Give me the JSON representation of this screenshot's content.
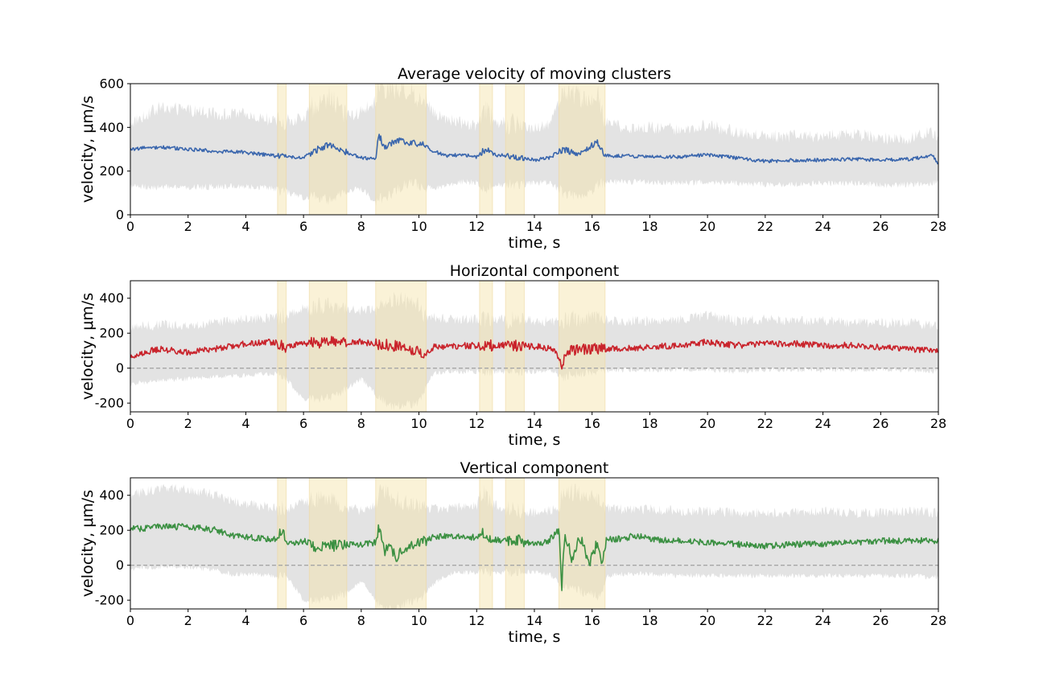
{
  "chart_data": [
    {
      "type": "line",
      "title": "Average velocity of moving clusters",
      "xlabel": "time, s",
      "ylabel": "velocity, μm/s",
      "xlim": [
        0,
        28
      ],
      "ylim": [
        0,
        600
      ],
      "xticks": [
        0,
        2,
        4,
        6,
        8,
        10,
        12,
        14,
        16,
        18,
        20,
        22,
        24,
        26,
        28
      ],
      "yticks": [
        0,
        200,
        400,
        600
      ],
      "ytick_labels": [
        "0",
        "200",
        "400",
        "600"
      ],
      "zero_line": false,
      "highlight_intervals": [
        [
          5.1,
          5.4
        ],
        [
          6.2,
          7.5
        ],
        [
          8.5,
          10.25
        ],
        [
          12.1,
          12.55
        ],
        [
          13.0,
          13.65
        ],
        [
          14.85,
          16.45
        ]
      ],
      "series": [
        {
          "color": "#3a66ad",
          "x": [
            0,
            1,
            2,
            3,
            4,
            5,
            6,
            6.5,
            6.9,
            7.5,
            8.0,
            8.5,
            8.6,
            8.8,
            9.2,
            9.7,
            10.2,
            10.5,
            11,
            11.5,
            12,
            12.3,
            12.6,
            13,
            13.7,
            14,
            14.5,
            15,
            15.5,
            16,
            16.2,
            16.45,
            17,
            18,
            19,
            20,
            21,
            22,
            23,
            24,
            25,
            26,
            27,
            27.8,
            28
          ],
          "y": [
            300,
            310,
            300,
            290,
            285,
            270,
            260,
            300,
            320,
            285,
            260,
            255,
            370,
            310,
            340,
            330,
            320,
            290,
            270,
            275,
            265,
            300,
            275,
            270,
            255,
            250,
            260,
            300,
            280,
            320,
            330,
            270,
            270,
            265,
            265,
            275,
            260,
            245,
            250,
            250,
            255,
            250,
            255,
            270,
            235
          ],
          "band_lower": [
            130,
            125,
            125,
            130,
            130,
            120,
            80,
            80,
            70,
            110,
            120,
            60,
            70,
            80,
            110,
            150,
            130,
            120,
            140,
            150,
            150,
            120,
            130,
            140,
            140,
            145,
            150,
            100,
            90,
            95,
            140,
            150,
            150,
            150,
            145,
            150,
            145,
            140,
            140,
            145,
            145,
            135,
            140,
            145,
            145
          ],
          "band_upper": [
            420,
            490,
            480,
            460,
            460,
            430,
            440,
            520,
            540,
            450,
            470,
            520,
            600,
            560,
            580,
            560,
            520,
            470,
            440,
            420,
            410,
            490,
            430,
            420,
            400,
            400,
            420,
            560,
            540,
            520,
            560,
            420,
            400,
            400,
            390,
            410,
            380,
            360,
            360,
            360,
            370,
            350,
            350,
            380,
            340
          ]
        }
      ]
    },
    {
      "type": "line",
      "title": "Horizontal component",
      "xlabel": "time, s",
      "ylabel": "velocity, μm/s",
      "xlim": [
        0,
        28
      ],
      "ylim": [
        -250,
        500
      ],
      "xticks": [
        0,
        2,
        4,
        6,
        8,
        10,
        12,
        14,
        16,
        18,
        20,
        22,
        24,
        26,
        28
      ],
      "yticks": [
        -200,
        0,
        200,
        400
      ],
      "ytick_labels": [
        "-200",
        "0",
        "200",
        "400"
      ],
      "zero_line": true,
      "highlight_intervals": [
        [
          5.1,
          5.4
        ],
        [
          6.2,
          7.5
        ],
        [
          8.5,
          10.25
        ],
        [
          12.1,
          12.55
        ],
        [
          13.0,
          13.65
        ],
        [
          14.85,
          16.45
        ]
      ],
      "series": [
        {
          "color": "#c9232b",
          "x": [
            0,
            0.5,
            1,
            2,
            3,
            4,
            5,
            5.3,
            6,
            7,
            8,
            8.5,
            9,
            9.5,
            10,
            10.2,
            10.5,
            11,
            12,
            13,
            14,
            14.7,
            14.95,
            15.2,
            16,
            17,
            18,
            19,
            20,
            21,
            22,
            23,
            24,
            25,
            26,
            27,
            28
          ],
          "y": [
            60,
            90,
            110,
            90,
            110,
            140,
            150,
            120,
            140,
            150,
            150,
            140,
            130,
            120,
            100,
            80,
            120,
            125,
            130,
            130,
            125,
            110,
            20,
            100,
            110,
            110,
            120,
            130,
            150,
            130,
            140,
            140,
            130,
            130,
            120,
            110,
            100
          ],
          "band_lower": [
            -90,
            -80,
            -70,
            -60,
            -50,
            -40,
            -30,
            -40,
            -180,
            -170,
            -60,
            -150,
            -220,
            -210,
            -200,
            -120,
            -30,
            -20,
            -20,
            -20,
            -20,
            -20,
            -60,
            -40,
            -20,
            -10,
            -10,
            -10,
            -10,
            -20,
            -10,
            -10,
            -10,
            -10,
            -10,
            -10,
            -20
          ],
          "band_upper": [
            230,
            240,
            250,
            240,
            260,
            280,
            290,
            300,
            340,
            360,
            330,
            340,
            400,
            380,
            350,
            300,
            290,
            280,
            280,
            280,
            270,
            270,
            270,
            280,
            280,
            270,
            270,
            280,
            300,
            270,
            280,
            270,
            270,
            260,
            260,
            260,
            240
          ]
        }
      ]
    },
    {
      "type": "line",
      "title": "Vertical component",
      "xlabel": "time, s",
      "ylabel": "velocity, μm/s",
      "xlim": [
        0,
        28
      ],
      "ylim": [
        -250,
        500
      ],
      "xticks": [
        0,
        2,
        4,
        6,
        8,
        10,
        12,
        14,
        16,
        18,
        20,
        22,
        24,
        26,
        28
      ],
      "yticks": [
        -200,
        0,
        200,
        400
      ],
      "ytick_labels": [
        "-200",
        "0",
        "200",
        "400"
      ],
      "zero_line": true,
      "highlight_intervals": [
        [
          5.1,
          5.4
        ],
        [
          6.2,
          7.5
        ],
        [
          8.5,
          10.25
        ],
        [
          12.1,
          12.55
        ],
        [
          13.0,
          13.65
        ],
        [
          14.85,
          16.45
        ]
      ],
      "series": [
        {
          "color": "#3b9042",
          "x": [
            0,
            0.5,
            1,
            1.5,
            2,
            2.5,
            3,
            3.5,
            4,
            5,
            5.25,
            5.5,
            6,
            6.5,
            7,
            7.5,
            8,
            8.5,
            8.65,
            8.8,
            9.0,
            9.2,
            9.5,
            10,
            10.5,
            11,
            11.5,
            12,
            12.2,
            12.5,
            13,
            13.5,
            14,
            14.5,
            14.85,
            14.95,
            15.05,
            15.3,
            15.6,
            15.9,
            16.2,
            16.35,
            16.5,
            17,
            17.5,
            18,
            19,
            20,
            21,
            22,
            23,
            24,
            25,
            26,
            27,
            28
          ],
          "y": [
            210,
            210,
            225,
            220,
            220,
            210,
            200,
            170,
            160,
            150,
            190,
            120,
            140,
            100,
            110,
            120,
            120,
            130,
            240,
            70,
            110,
            40,
            100,
            130,
            160,
            170,
            160,
            160,
            190,
            150,
            140,
            140,
            120,
            140,
            200,
            -130,
            180,
            40,
            160,
            10,
            140,
            0,
            150,
            150,
            170,
            150,
            140,
            130,
            120,
            110,
            120,
            120,
            130,
            140,
            140,
            140
          ],
          "band_lower": [
            -20,
            -10,
            -10,
            -10,
            -10,
            -20,
            -30,
            -50,
            -50,
            -60,
            -60,
            -80,
            -200,
            -200,
            -180,
            -160,
            -90,
            -200,
            -230,
            -250,
            -250,
            -240,
            -220,
            -200,
            -110,
            -50,
            -40,
            -40,
            -30,
            -40,
            -40,
            -40,
            -40,
            -50,
            -100,
            -150,
            -120,
            -130,
            -150,
            -160,
            -180,
            -170,
            -60,
            -50,
            -50,
            -50,
            -60,
            -60,
            -60,
            -60,
            -60,
            -60,
            -60,
            -60,
            -60,
            -70
          ],
          "band_upper": [
            400,
            420,
            440,
            440,
            430,
            420,
            400,
            370,
            350,
            330,
            330,
            320,
            360,
            380,
            370,
            330,
            310,
            350,
            450,
            420,
            400,
            380,
            360,
            330,
            320,
            330,
            330,
            340,
            430,
            360,
            320,
            310,
            300,
            310,
            330,
            420,
            400,
            420,
            410,
            400,
            390,
            380,
            330,
            320,
            320,
            320,
            310,
            310,
            300,
            300,
            300,
            310,
            300,
            300,
            310,
            300
          ]
        }
      ]
    }
  ]
}
